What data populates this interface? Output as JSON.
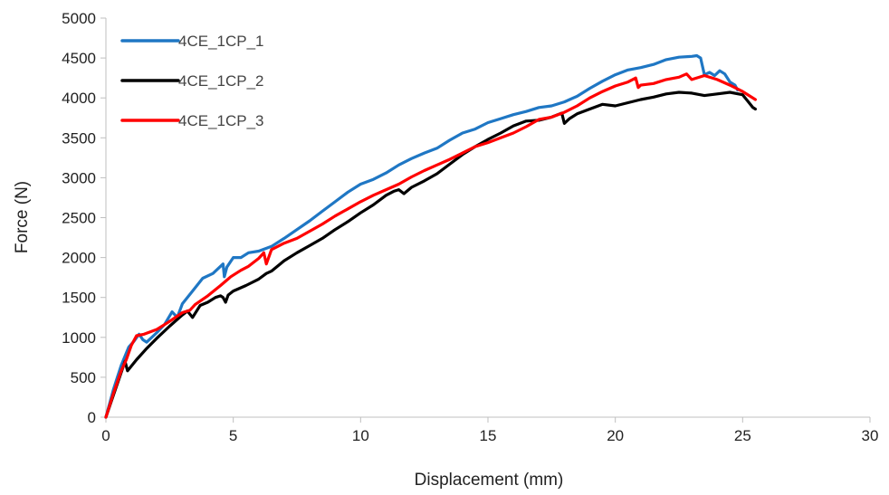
{
  "chart_data": {
    "type": "line",
    "xlabel": "Displacement (mm)",
    "ylabel": "Force (N)",
    "xlim": [
      0,
      30
    ],
    "ylim": [
      0,
      5000
    ],
    "xticks": [
      0,
      5,
      10,
      15,
      20,
      25,
      30
    ],
    "yticks": [
      0,
      500,
      1000,
      1500,
      2000,
      2500,
      3000,
      3500,
      4000,
      4500,
      5000
    ],
    "grid": false,
    "legend": "top-left",
    "series": [
      {
        "name": "4CE_1CP_1",
        "color": "#1f77c4",
        "x": [
          0,
          0.3,
          0.6,
          0.9,
          1.1,
          1.3,
          1.45,
          1.6,
          2.0,
          2.3,
          2.6,
          2.8,
          3.0,
          3.4,
          3.8,
          4.2,
          4.6,
          4.65,
          4.75,
          5.0,
          5.3,
          5.6,
          6.0,
          6.5,
          7.0,
          7.5,
          8.0,
          8.5,
          9.0,
          9.5,
          10.0,
          10.5,
          11.0,
          11.5,
          12.0,
          12.5,
          13.0,
          13.5,
          14.0,
          14.5,
          15.0,
          15.5,
          16.0,
          16.5,
          17.0,
          17.5,
          18.0,
          18.5,
          19.0,
          19.5,
          20.0,
          20.5,
          21.0,
          21.5,
          22.0,
          22.5,
          23.0,
          23.2,
          23.35,
          23.5,
          23.7,
          23.9,
          24.1,
          24.3,
          24.5,
          24.7,
          24.8
        ],
        "y": [
          0,
          350,
          650,
          880,
          950,
          1040,
          970,
          940,
          1060,
          1160,
          1320,
          1250,
          1420,
          1580,
          1740,
          1800,
          1920,
          1760,
          1880,
          2000,
          2000,
          2060,
          2080,
          2140,
          2240,
          2350,
          2460,
          2580,
          2700,
          2820,
          2920,
          2980,
          3060,
          3160,
          3240,
          3310,
          3370,
          3470,
          3560,
          3610,
          3690,
          3740,
          3790,
          3830,
          3880,
          3900,
          3950,
          4020,
          4120,
          4210,
          4290,
          4350,
          4380,
          4420,
          4480,
          4510,
          4520,
          4530,
          4500,
          4290,
          4320,
          4280,
          4340,
          4300,
          4200,
          4160,
          4100
        ]
      },
      {
        "name": "4CE_1CP_2",
        "color": "#000000",
        "x": [
          0,
          0.3,
          0.6,
          0.75,
          0.85,
          1.2,
          1.6,
          2.0,
          2.5,
          3.0,
          3.2,
          3.4,
          3.7,
          4.0,
          4.3,
          4.5,
          4.6,
          4.7,
          4.8,
          5.0,
          5.5,
          6.0,
          6.3,
          6.5,
          7.0,
          7.5,
          8.0,
          8.5,
          9.0,
          9.5,
          10.0,
          10.5,
          11.0,
          11.3,
          11.5,
          11.7,
          12.0,
          12.5,
          13.0,
          13.5,
          14.0,
          14.5,
          15.0,
          15.5,
          16.0,
          16.5,
          17.0,
          17.5,
          17.9,
          18.0,
          18.2,
          18.5,
          19.0,
          19.5,
          20.0,
          20.5,
          21.0,
          21.5,
          22.0,
          22.5,
          23.0,
          23.5,
          24.0,
          24.5,
          25.0,
          25.2,
          25.4,
          25.5
        ],
        "y": [
          0,
          280,
          560,
          700,
          580,
          720,
          860,
          990,
          1140,
          1280,
          1330,
          1250,
          1400,
          1440,
          1500,
          1520,
          1500,
          1440,
          1530,
          1580,
          1650,
          1730,
          1800,
          1830,
          1960,
          2060,
          2150,
          2240,
          2350,
          2450,
          2560,
          2660,
          2780,
          2830,
          2850,
          2800,
          2880,
          2960,
          3050,
          3170,
          3290,
          3390,
          3480,
          3560,
          3650,
          3710,
          3720,
          3760,
          3810,
          3680,
          3740,
          3800,
          3860,
          3920,
          3900,
          3940,
          3980,
          4010,
          4050,
          4070,
          4060,
          4030,
          4050,
          4070,
          4040,
          3960,
          3880,
          3860
        ]
      },
      {
        "name": "4CE_1CP_3",
        "color": "#ff0000",
        "x": [
          0,
          0.3,
          0.6,
          0.8,
          1.0,
          1.2,
          1.5,
          2.0,
          2.5,
          3.0,
          3.3,
          3.5,
          4.0,
          4.5,
          4.9,
          5.3,
          5.6,
          6.0,
          6.2,
          6.3,
          6.5,
          7.0,
          7.5,
          8.0,
          8.5,
          9.0,
          9.5,
          10.0,
          10.5,
          11.0,
          11.5,
          12.0,
          12.5,
          13.0,
          13.5,
          14.0,
          14.5,
          15.0,
          15.5,
          16.0,
          16.5,
          17.0,
          17.5,
          18.0,
          18.5,
          19.0,
          19.5,
          20.0,
          20.5,
          20.8,
          20.9,
          21.0,
          21.5,
          22.0,
          22.5,
          22.8,
          23.0,
          23.5,
          24.0,
          24.5,
          25.0,
          25.5
        ],
        "y": [
          0,
          300,
          580,
          720,
          900,
          1020,
          1040,
          1100,
          1200,
          1310,
          1340,
          1410,
          1520,
          1650,
          1760,
          1840,
          1890,
          1990,
          2060,
          1920,
          2100,
          2180,
          2240,
          2330,
          2420,
          2520,
          2610,
          2700,
          2780,
          2850,
          2920,
          3010,
          3090,
          3160,
          3230,
          3310,
          3390,
          3440,
          3500,
          3560,
          3640,
          3730,
          3760,
          3820,
          3900,
          4000,
          4080,
          4150,
          4200,
          4250,
          4130,
          4160,
          4180,
          4230,
          4260,
          4300,
          4230,
          4280,
          4230,
          4160,
          4080,
          3980
        ]
      }
    ]
  }
}
